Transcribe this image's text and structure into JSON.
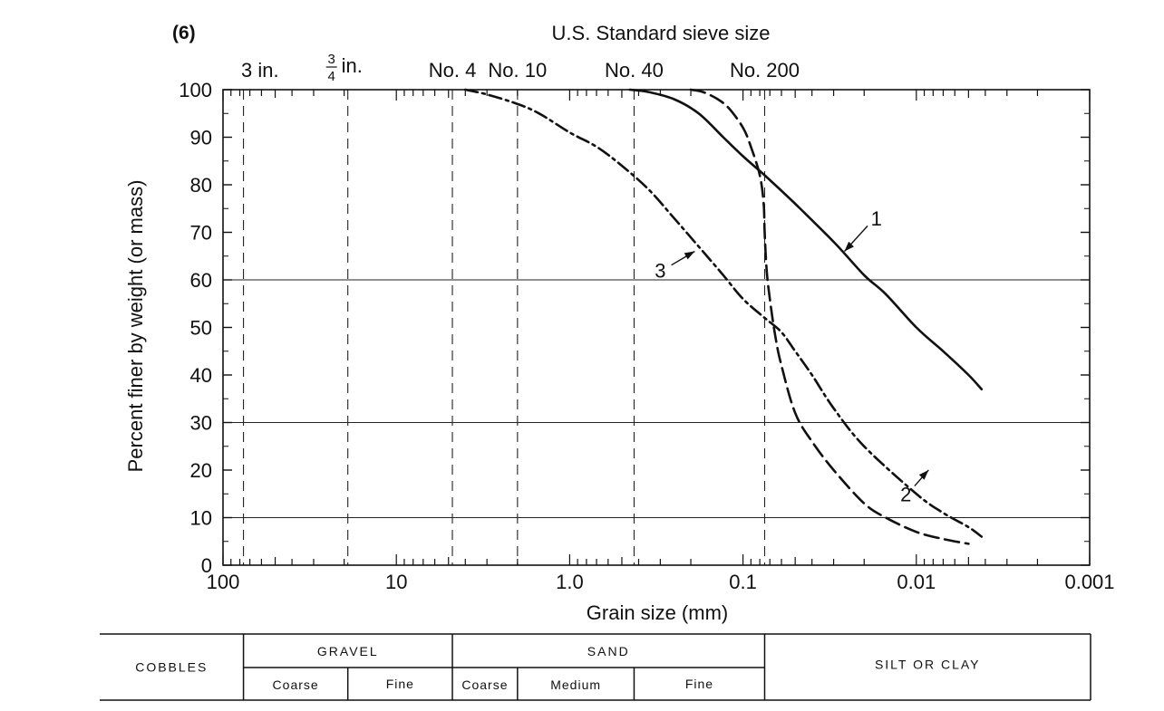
{
  "chart_data": {
    "type": "line",
    "panel_label": "(6)",
    "title": "U.S. Standard sieve size",
    "xlabel": "Grain size (mm)",
    "ylabel": "Percent finer by weight (or mass)",
    "x_scale": "log",
    "x_reversed": true,
    "xlim": [
      100,
      0.001
    ],
    "ylim": [
      0,
      100
    ],
    "x_ticks": [
      {
        "value": 100,
        "label": "100"
      },
      {
        "value": 10,
        "label": "10"
      },
      {
        "value": 1,
        "label": "1.0"
      },
      {
        "value": 0.1,
        "label": "0.1"
      },
      {
        "value": 0.01,
        "label": "0.01"
      },
      {
        "value": 0.001,
        "label": "0.001"
      }
    ],
    "y_ticks": [
      0,
      10,
      20,
      30,
      40,
      50,
      60,
      70,
      80,
      90,
      100
    ],
    "horizontal_gridlines": [
      10,
      30,
      60
    ],
    "sieves": [
      {
        "label_main": "3 in.",
        "label_frac_num": "",
        "label_frac_den": "",
        "mm": 76.2
      },
      {
        "label_main": "in.",
        "label_frac_num": "3",
        "label_frac_den": "4",
        "mm": 19.05
      },
      {
        "label_main": "No. 4",
        "label_frac_num": "",
        "label_frac_den": "",
        "mm": 4.75
      },
      {
        "label_main": "No. 10",
        "label_frac_num": "",
        "label_frac_den": "",
        "mm": 2.0
      },
      {
        "label_main": "No. 40",
        "label_frac_num": "",
        "label_frac_den": "",
        "mm": 0.425
      },
      {
        "label_main": "No. 200",
        "label_frac_num": "",
        "label_frac_den": "",
        "mm": 0.075
      }
    ],
    "series": [
      {
        "name": "1",
        "style": "solid",
        "label_pos": {
          "x": 0.017,
          "y": 73
        },
        "arrow_to": {
          "x": 0.026,
          "y": 66
        },
        "x": [
          0.45,
          0.35,
          0.25,
          0.18,
          0.13,
          0.1,
          0.075,
          0.05,
          0.03,
          0.02,
          0.015,
          0.01,
          0.007,
          0.005,
          0.0042
        ],
        "y": [
          100,
          99.5,
          98,
          95,
          90,
          86,
          82,
          76,
          68,
          61,
          57,
          50,
          45,
          40,
          37
        ]
      },
      {
        "name": "2",
        "style": "dashed",
        "label_pos": {
          "x": 0.0115,
          "y": 15
        },
        "arrow_to": {
          "x": 0.0085,
          "y": 20
        },
        "x": [
          0.2,
          0.17,
          0.14,
          0.12,
          0.1,
          0.09,
          0.08,
          0.076,
          0.075,
          0.073,
          0.07,
          0.065,
          0.06,
          0.05,
          0.04,
          0.03,
          0.02,
          0.015,
          0.01,
          0.007,
          0.005
        ],
        "y": [
          100,
          99.5,
          98,
          96,
          92,
          88,
          82,
          76,
          70,
          62,
          56,
          48,
          42,
          32,
          26,
          20,
          13,
          10,
          7,
          5.5,
          4.5
        ]
      },
      {
        "name": "3",
        "style": "dashdot",
        "label_pos": {
          "x": 0.3,
          "y": 62
        },
        "arrow_to": {
          "x": 0.19,
          "y": 66
        },
        "x": [
          4.0,
          3.0,
          2.0,
          1.5,
          1.0,
          0.7,
          0.5,
          0.35,
          0.25,
          0.18,
          0.13,
          0.1,
          0.075,
          0.06,
          0.05,
          0.04,
          0.03,
          0.02,
          0.01,
          0.007,
          0.005,
          0.0042
        ],
        "y": [
          100,
          99,
          97,
          95,
          91,
          88,
          84,
          79,
          73,
          67,
          61,
          56,
          52,
          49,
          45,
          40,
          33,
          25,
          15,
          11,
          8,
          6
        ]
      }
    ]
  },
  "classification": {
    "cobbles": "COBBLES",
    "gravel": "GRAVEL",
    "gravel_coarse": "Coarse",
    "gravel_fine": "Fine",
    "sand": "SAND",
    "sand_coarse": "Coarse",
    "sand_medium": "Medium",
    "sand_fine": "Fine",
    "silt_clay": "SILT OR CLAY"
  }
}
